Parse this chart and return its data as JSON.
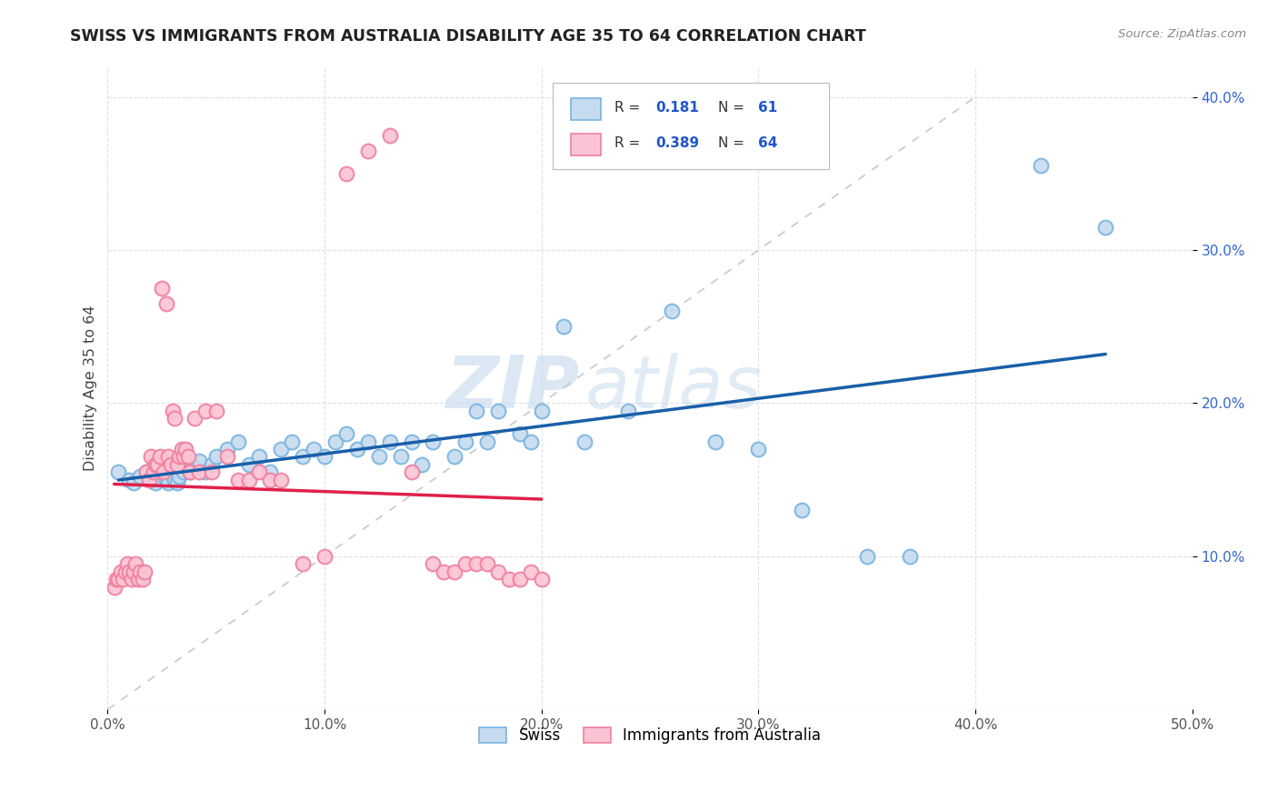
{
  "title": "SWISS VS IMMIGRANTS FROM AUSTRALIA DISABILITY AGE 35 TO 64 CORRELATION CHART",
  "source": "Source: ZipAtlas.com",
  "ylabel": "Disability Age 35 to 64",
  "xlim": [
    0.0,
    0.5
  ],
  "ylim": [
    0.0,
    0.42
  ],
  "xticks": [
    0.0,
    0.1,
    0.2,
    0.3,
    0.4,
    0.5
  ],
  "yticks": [
    0.1,
    0.2,
    0.3,
    0.4
  ],
  "xticklabels": [
    "0.0%",
    "10.0%",
    "20.0%",
    "30.0%",
    "40.0%",
    "50.0%"
  ],
  "yticklabels": [
    "10.0%",
    "20.0%",
    "30.0%",
    "40.0%"
  ],
  "swiss_edge_color": "#7ab4e0",
  "swiss_face_color": "#c6dbef",
  "immig_edge_color": "#f080a0",
  "immig_face_color": "#fbc4d4",
  "trend_swiss_color": "#1a5fa8",
  "trend_immig_color": "#e0204a",
  "diag_color": "#cccccc",
  "R_swiss": 0.181,
  "N_swiss": 61,
  "R_immig": 0.389,
  "N_immig": 64,
  "watermark_zip": "ZIP",
  "watermark_atlas": "atlas",
  "swiss_x": [
    0.005,
    0.01,
    0.012,
    0.015,
    0.018,
    0.02,
    0.022,
    0.025,
    0.027,
    0.028,
    0.03,
    0.031,
    0.032,
    0.033,
    0.035,
    0.036,
    0.038,
    0.04,
    0.042,
    0.045,
    0.048,
    0.05,
    0.055,
    0.06,
    0.065,
    0.07,
    0.075,
    0.08,
    0.085,
    0.09,
    0.095,
    0.1,
    0.105,
    0.11,
    0.115,
    0.12,
    0.125,
    0.13,
    0.135,
    0.14,
    0.145,
    0.15,
    0.16,
    0.165,
    0.17,
    0.175,
    0.18,
    0.19,
    0.195,
    0.2,
    0.21,
    0.22,
    0.24,
    0.26,
    0.28,
    0.3,
    0.32,
    0.35,
    0.37,
    0.43,
    0.46
  ],
  "swiss_y": [
    0.155,
    0.15,
    0.148,
    0.152,
    0.155,
    0.15,
    0.148,
    0.155,
    0.15,
    0.148,
    0.155,
    0.15,
    0.148,
    0.152,
    0.155,
    0.16,
    0.155,
    0.158,
    0.162,
    0.155,
    0.16,
    0.165,
    0.17,
    0.175,
    0.16,
    0.165,
    0.155,
    0.17,
    0.175,
    0.165,
    0.17,
    0.165,
    0.175,
    0.18,
    0.17,
    0.175,
    0.165,
    0.175,
    0.165,
    0.175,
    0.16,
    0.175,
    0.165,
    0.175,
    0.195,
    0.175,
    0.195,
    0.18,
    0.175,
    0.195,
    0.25,
    0.175,
    0.195,
    0.26,
    0.175,
    0.17,
    0.13,
    0.1,
    0.1,
    0.355,
    0.315
  ],
  "immig_x": [
    0.003,
    0.004,
    0.005,
    0.006,
    0.007,
    0.008,
    0.009,
    0.01,
    0.011,
    0.012,
    0.013,
    0.014,
    0.015,
    0.016,
    0.017,
    0.018,
    0.019,
    0.02,
    0.021,
    0.022,
    0.023,
    0.024,
    0.025,
    0.026,
    0.027,
    0.028,
    0.029,
    0.03,
    0.031,
    0.032,
    0.033,
    0.034,
    0.035,
    0.036,
    0.037,
    0.038,
    0.04,
    0.042,
    0.045,
    0.048,
    0.05,
    0.055,
    0.06,
    0.065,
    0.07,
    0.075,
    0.08,
    0.09,
    0.1,
    0.11,
    0.12,
    0.13,
    0.14,
    0.15,
    0.155,
    0.16,
    0.165,
    0.17,
    0.175,
    0.18,
    0.185,
    0.19,
    0.195,
    0.2
  ],
  "immig_y": [
    0.08,
    0.085,
    0.085,
    0.09,
    0.085,
    0.09,
    0.095,
    0.09,
    0.085,
    0.09,
    0.095,
    0.085,
    0.09,
    0.085,
    0.09,
    0.155,
    0.15,
    0.165,
    0.155,
    0.16,
    0.16,
    0.165,
    0.275,
    0.155,
    0.265,
    0.165,
    0.16,
    0.195,
    0.19,
    0.16,
    0.165,
    0.17,
    0.165,
    0.17,
    0.165,
    0.155,
    0.19,
    0.155,
    0.195,
    0.155,
    0.195,
    0.165,
    0.15,
    0.15,
    0.155,
    0.15,
    0.15,
    0.095,
    0.1,
    0.35,
    0.365,
    0.375,
    0.155,
    0.095,
    0.09,
    0.09,
    0.095,
    0.095,
    0.095,
    0.09,
    0.085,
    0.085,
    0.09,
    0.085
  ]
}
